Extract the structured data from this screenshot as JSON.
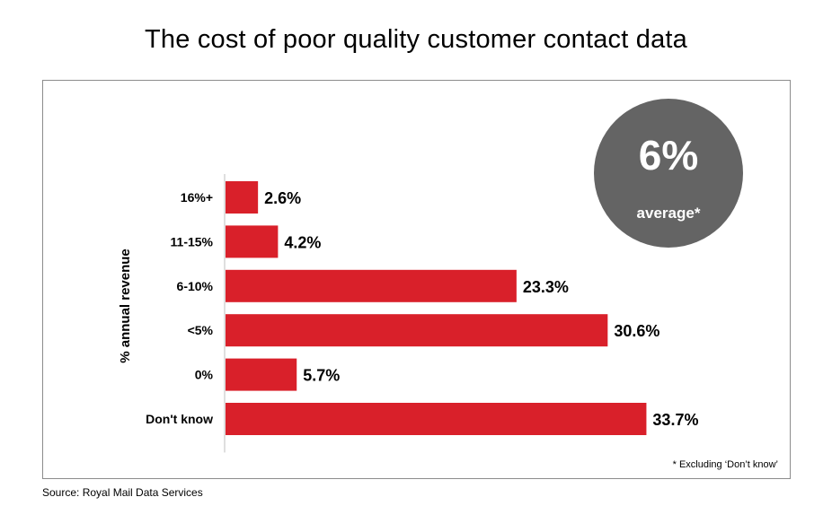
{
  "title": "The cost of poor quality customer contact data",
  "badge": {
    "value": "6%",
    "label": "average*"
  },
  "footnote": "* Excluding ‘Don’t know’",
  "source": "Source: Royal Mail Data Services",
  "colors": {
    "bar": "#d9202a",
    "badge": "#646464",
    "axis": "#bfbfbf"
  },
  "chart_data": {
    "type": "bar",
    "orientation": "horizontal",
    "ylabel": "% annual revenue",
    "categories": [
      "16%+",
      "11-15%",
      "6-10%",
      "<5%",
      "0%",
      "Don't know"
    ],
    "values": [
      2.6,
      4.2,
      23.3,
      30.6,
      5.7,
      33.7
    ],
    "value_labels": [
      "2.6%",
      "4.2%",
      "23.3%",
      "30.6%",
      "5.7%",
      "33.7%"
    ],
    "xlim": [
      0,
      40
    ],
    "grid": false,
    "legend": "none"
  }
}
